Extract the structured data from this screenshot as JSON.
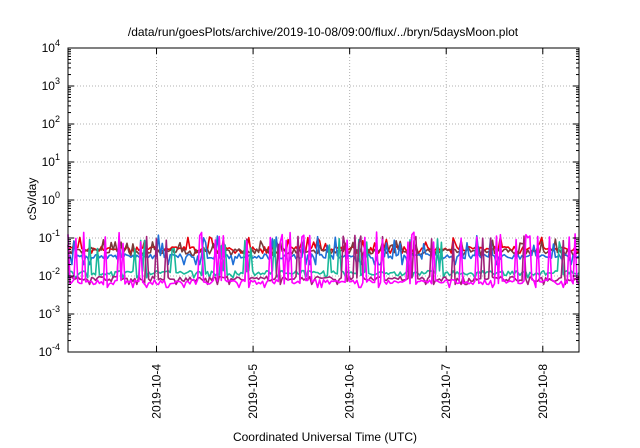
{
  "chart_data": {
    "type": "line",
    "title": "/data/run/goesPlots/archive/2019-10-08/09:00/flux/../bryn/5daysMoon.plot",
    "xlabel": "Coordinated Universal Time (UTC)",
    "ylabel": "cSv/day",
    "yscale": "log",
    "ylim": [
      0.0001,
      10000
    ],
    "ytick_exponents": [
      "-4",
      "-3",
      "-2",
      "-1",
      "0",
      "1",
      "2",
      "3",
      "4"
    ],
    "ytick_base": "10",
    "xlim": [
      "2019-10-03T02:00",
      "2019-10-08T09:00"
    ],
    "xticks": [
      "2019-10-4",
      "2019-10-5",
      "2019-10-6",
      "2019-10-7",
      "2019-10-8"
    ],
    "xtick_dates": [
      "2019-10-04",
      "2019-10-05",
      "2019-10-06",
      "2019-10-07",
      "2019-10-08"
    ],
    "grid": true,
    "series": [
      {
        "color": "#e8000b",
        "base": 0.052,
        "spike": 0.09,
        "dip": 0.04
      },
      {
        "color": "#7a3a3a",
        "base": 0.045,
        "spike": 0.08,
        "dip": 0.035
      },
      {
        "color": "#1f6fd6",
        "base": 0.033,
        "spike": 0.1,
        "dip": 0.02
      },
      {
        "color": "#1ab89a",
        "base": 0.012,
        "spike": 0.08,
        "dip": 0.009
      },
      {
        "color": "#a0207a",
        "base": 0.0085,
        "spike": 0.1,
        "dip": 0.006
      },
      {
        "color": "#ff00ff",
        "base": 0.007,
        "spike": 0.12,
        "dip": 0.005
      }
    ]
  }
}
